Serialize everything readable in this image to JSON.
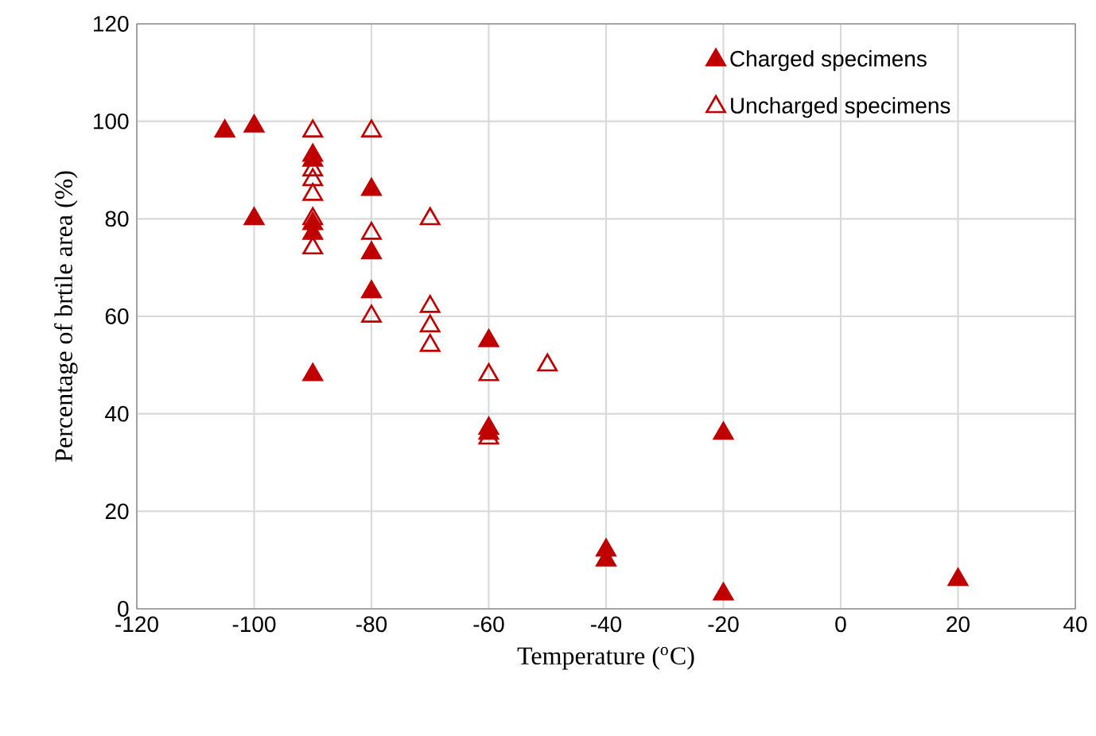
{
  "chart_data": {
    "type": "scatter",
    "xlabel": "Temperature ($^{o}$C)",
    "ylabel": "Percentage of brtile area (%)",
    "xlim": [
      -120,
      40
    ],
    "ylim": [
      0,
      120
    ],
    "xticks": [
      -120,
      -100,
      -80,
      -60,
      -40,
      -20,
      0,
      20,
      40
    ],
    "yticks": [
      0,
      20,
      40,
      60,
      80,
      100,
      120
    ],
    "grid": true,
    "legend": "top",
    "series": [
      {
        "name": "Charged specimens",
        "color": "#c00000",
        "marker": "triangle",
        "x": [
          -105,
          -100,
          -100,
          -90,
          -90,
          -90,
          -90,
          -90,
          -80,
          -80,
          -80,
          -60,
          -60,
          -60,
          -40,
          -40,
          -20,
          -20,
          20
        ],
        "values": [
          98,
          99,
          80,
          93,
          92,
          79,
          77,
          48,
          86,
          73,
          65,
          55,
          37,
          36,
          12,
          10,
          36,
          3,
          6
        ]
      },
      {
        "name": "Uncharged specimens",
        "color": "#c00000",
        "marker": "triangle-open",
        "x": [
          -90,
          -90,
          -90,
          -90,
          -90,
          -90,
          -80,
          -80,
          -80,
          -70,
          -70,
          -70,
          -70,
          -60,
          -60,
          -50
        ],
        "values": [
          98,
          90,
          88,
          85,
          80,
          74,
          98,
          77,
          60,
          80,
          62,
          58,
          54,
          48,
          35,
          50
        ]
      }
    ]
  }
}
